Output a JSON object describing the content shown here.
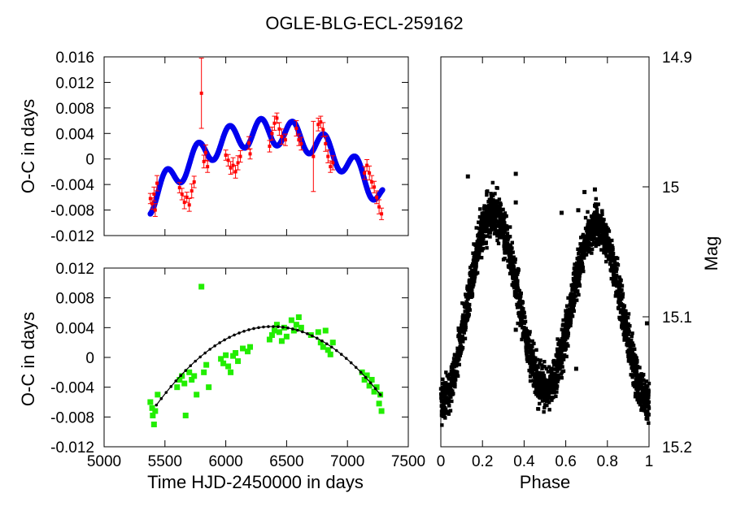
{
  "figure": {
    "title": "OGLE-BLG-ECL-259162"
  },
  "chart_data": [
    {
      "type": "scatter",
      "id": "oc-top",
      "title": "",
      "xlabel": "",
      "ylabel": "O-C in days",
      "xlim": [
        5000,
        7500
      ],
      "ylim": [
        -0.012,
        0.016
      ],
      "yticks": [
        "0.016",
        "0.012",
        "0.008",
        "0.004",
        "0",
        "-0.004",
        "-0.008",
        "-0.012"
      ],
      "ytick_values": [
        0.016,
        0.012,
        0.008,
        0.004,
        0,
        -0.004,
        -0.008,
        -0.012
      ],
      "xtick_values": [
        5000,
        5500,
        6000,
        6500,
        7000,
        7500
      ],
      "grid": false,
      "series": [
        {
          "name": "observed O-C with error bars",
          "kind": "errorbar",
          "color": "#ff0000",
          "points": [
            {
              "x": 5380,
              "y": -0.0062,
              "err": 0.0008
            },
            {
              "x": 5395,
              "y": -0.007,
              "err": 0.0009
            },
            {
              "x": 5410,
              "y": -0.0055,
              "err": 0.0011
            },
            {
              "x": 5420,
              "y": -0.008,
              "err": 0.001
            },
            {
              "x": 5435,
              "y": -0.0038,
              "err": 0.0012
            },
            {
              "x": 5620,
              "y": -0.0045,
              "err": 0.0008
            },
            {
              "x": 5640,
              "y": -0.0055,
              "err": 0.0009
            },
            {
              "x": 5660,
              "y": -0.0068,
              "err": 0.001
            },
            {
              "x": 5680,
              "y": -0.006,
              "err": 0.0008
            },
            {
              "x": 5700,
              "y": -0.0072,
              "err": 0.001
            },
            {
              "x": 5720,
              "y": -0.005,
              "err": 0.0011
            },
            {
              "x": 5740,
              "y": -0.0036,
              "err": 0.0009
            },
            {
              "x": 5800,
              "y": 0.0103,
              "err": 0.0055
            },
            {
              "x": 5820,
              "y": -0.0004,
              "err": 0.001
            },
            {
              "x": 5835,
              "y": 0.001,
              "err": 0.0012
            },
            {
              "x": 5850,
              "y": -0.0012,
              "err": 0.0009
            },
            {
              "x": 6000,
              "y": 0.0006,
              "err": 0.0008
            },
            {
              "x": 6020,
              "y": -0.0002,
              "err": 0.0009
            },
            {
              "x": 6040,
              "y": -0.0014,
              "err": 0.001
            },
            {
              "x": 6060,
              "y": -0.001,
              "err": 0.0012
            },
            {
              "x": 6080,
              "y": -0.002,
              "err": 0.001
            },
            {
              "x": 6100,
              "y": -0.0006,
              "err": 0.0011
            },
            {
              "x": 6120,
              "y": 0.0004,
              "err": 0.0009
            },
            {
              "x": 6190,
              "y": 0.0025,
              "err": 0.001
            },
            {
              "x": 6200,
              "y": 0.0008,
              "err": 0.0008
            },
            {
              "x": 6360,
              "y": 0.002,
              "err": 0.0009
            },
            {
              "x": 6380,
              "y": 0.004,
              "err": 0.001
            },
            {
              "x": 6400,
              "y": 0.0056,
              "err": 0.0011
            },
            {
              "x": 6420,
              "y": 0.0064,
              "err": 0.0008
            },
            {
              "x": 6440,
              "y": 0.0047,
              "err": 0.001
            },
            {
              "x": 6460,
              "y": 0.0035,
              "err": 0.0012
            },
            {
              "x": 6490,
              "y": 0.003,
              "err": 0.0009
            },
            {
              "x": 6580,
              "y": 0.0048,
              "err": 0.0012
            },
            {
              "x": 6600,
              "y": 0.003,
              "err": 0.0009
            },
            {
              "x": 6620,
              "y": 0.0024,
              "err": 0.001
            },
            {
              "x": 6720,
              "y": 0.0004,
              "err": 0.0055
            },
            {
              "x": 6760,
              "y": 0.0054,
              "err": 0.001
            },
            {
              "x": 6780,
              "y": 0.0058,
              "err": 0.0009
            },
            {
              "x": 6800,
              "y": 0.0046,
              "err": 0.0011
            },
            {
              "x": 6820,
              "y": 0.0024,
              "err": 0.0012
            },
            {
              "x": 6840,
              "y": 0.0004,
              "err": 0.001
            },
            {
              "x": 6860,
              "y": -0.0012,
              "err": 0.0009
            },
            {
              "x": 6880,
              "y": -0.0006,
              "err": 0.0011
            },
            {
              "x": 7140,
              "y": -0.0022,
              "err": 0.001
            },
            {
              "x": 7160,
              "y": -0.001,
              "err": 0.0009
            },
            {
              "x": 7180,
              "y": -0.0022,
              "err": 0.0011
            },
            {
              "x": 7200,
              "y": -0.0036,
              "err": 0.001
            },
            {
              "x": 7220,
              "y": -0.0044,
              "err": 0.0009
            },
            {
              "x": 7240,
              "y": -0.006,
              "err": 0.001
            },
            {
              "x": 7260,
              "y": -0.0075,
              "err": 0.0011
            },
            {
              "x": 7280,
              "y": -0.0086,
              "err": 0.0009
            }
          ]
        },
        {
          "name": "LTTE + oscillation model",
          "kind": "model",
          "color": "#0000ee",
          "x_range": [
            5380,
            7290
          ],
          "trend_anchor_x": [
            5380,
            6600,
            7290
          ],
          "trend_anchor_y": [
            -0.0065,
            0.0035,
            -0.006
          ],
          "oscillation_amplitude": 0.0021,
          "oscillation_period_days": 260,
          "oscillation_phase_x": 5380
        }
      ]
    },
    {
      "type": "scatter",
      "id": "oc-bottom",
      "title": "",
      "xlabel": "Time HJD-2450000 in days",
      "ylabel": "O-C in days",
      "xlim": [
        5000,
        7500
      ],
      "ylim": [
        -0.012,
        0.012
      ],
      "xticks": [
        "5000",
        "5500",
        "6000",
        "6500",
        "7000",
        "7500"
      ],
      "xtick_values": [
        5000,
        5500,
        6000,
        6500,
        7000,
        7500
      ],
      "yticks": [
        "0.012",
        "0.008",
        "0.004",
        "0",
        "-0.004",
        "-0.008",
        "-0.012"
      ],
      "ytick_values": [
        0.012,
        0.008,
        0.004,
        0,
        -0.004,
        -0.008,
        -0.012
      ],
      "grid": false,
      "series": [
        {
          "name": "residual O-C",
          "kind": "points",
          "color": "#22ee00",
          "points": [
            {
              "x": 5380,
              "y": -0.006
            },
            {
              "x": 5395,
              "y": -0.0068
            },
            {
              "x": 5400,
              "y": -0.0078
            },
            {
              "x": 5410,
              "y": -0.009
            },
            {
              "x": 5420,
              "y": -0.0072
            },
            {
              "x": 5440,
              "y": -0.005
            },
            {
              "x": 5600,
              "y": -0.004
            },
            {
              "x": 5620,
              "y": -0.003
            },
            {
              "x": 5640,
              "y": -0.0025
            },
            {
              "x": 5660,
              "y": -0.0035
            },
            {
              "x": 5670,
              "y": -0.0078
            },
            {
              "x": 5700,
              "y": -0.002
            },
            {
              "x": 5720,
              "y": -0.003
            },
            {
              "x": 5740,
              "y": -0.0025
            },
            {
              "x": 5760,
              "y": -0.005
            },
            {
              "x": 5800,
              "y": 0.0095
            },
            {
              "x": 5820,
              "y": -0.002
            },
            {
              "x": 5840,
              "y": -0.001
            },
            {
              "x": 5860,
              "y": -0.004
            },
            {
              "x": 5960,
              "y": -0.0002
            },
            {
              "x": 5980,
              "y": -0.0008
            },
            {
              "x": 6000,
              "y": 0.0003
            },
            {
              "x": 6020,
              "y": -0.0012
            },
            {
              "x": 6040,
              "y": -0.002
            },
            {
              "x": 6060,
              "y": 0.0002
            },
            {
              "x": 6080,
              "y": 0.0006
            },
            {
              "x": 6100,
              "y": -0.0005
            },
            {
              "x": 6140,
              "y": 0.0012
            },
            {
              "x": 6180,
              "y": 0.0008
            },
            {
              "x": 6200,
              "y": 0.0014
            },
            {
              "x": 6360,
              "y": 0.0024
            },
            {
              "x": 6380,
              "y": 0.003
            },
            {
              "x": 6400,
              "y": 0.0036
            },
            {
              "x": 6420,
              "y": 0.0044
            },
            {
              "x": 6440,
              "y": 0.0034
            },
            {
              "x": 6460,
              "y": 0.0022
            },
            {
              "x": 6480,
              "y": 0.004
            },
            {
              "x": 6500,
              "y": 0.0028
            },
            {
              "x": 6540,
              "y": 0.005
            },
            {
              "x": 6560,
              "y": 0.0036
            },
            {
              "x": 6580,
              "y": 0.0044
            },
            {
              "x": 6600,
              "y": 0.0054
            },
            {
              "x": 6620,
              "y": 0.004
            },
            {
              "x": 6700,
              "y": 0.003
            },
            {
              "x": 6760,
              "y": 0.0034
            },
            {
              "x": 6780,
              "y": 0.002
            },
            {
              "x": 6800,
              "y": 0.0014
            },
            {
              "x": 6820,
              "y": 0.0036
            },
            {
              "x": 6840,
              "y": 0.001
            },
            {
              "x": 6860,
              "y": 0.0004
            },
            {
              "x": 6880,
              "y": 0.002
            },
            {
              "x": 7120,
              "y": -0.002
            },
            {
              "x": 7140,
              "y": -0.003
            },
            {
              "x": 7160,
              "y": -0.0024
            },
            {
              "x": 7180,
              "y": -0.0038
            },
            {
              "x": 7200,
              "y": -0.003
            },
            {
              "x": 7220,
              "y": -0.0046
            },
            {
              "x": 7240,
              "y": -0.004
            },
            {
              "x": 7260,
              "y": -0.0062
            },
            {
              "x": 7270,
              "y": -0.005
            },
            {
              "x": 7280,
              "y": -0.0072
            }
          ]
        },
        {
          "name": "LTTE fit",
          "kind": "line",
          "color": "#000000",
          "x_range": [
            5430,
            7280
          ],
          "trend_anchor_x": [
            5430,
            6600,
            7280
          ],
          "trend_anchor_y": [
            -0.0064,
            0.0036,
            -0.0052
          ]
        }
      ]
    },
    {
      "type": "scatter",
      "id": "phase-curve",
      "title": "",
      "xlabel": "Phase",
      "ylabel": "Mag",
      "xlim": [
        0,
        1
      ],
      "ylim_top_to_bottom": [
        14.9,
        15.2
      ],
      "xticks": [
        "0",
        "0.2",
        "0.4",
        "0.6",
        "0.8",
        "1"
      ],
      "xtick_values": [
        0,
        0.2,
        0.4,
        0.6,
        0.8,
        1
      ],
      "yticks": [
        "14.9",
        "15",
        "15.1",
        "15.2"
      ],
      "ytick_values": [
        14.9,
        15.0,
        15.1,
        15.2
      ],
      "grid": false,
      "series": [
        {
          "name": "light curve",
          "kind": "phased-light-curve",
          "color": "#000000",
          "maximum_1": {
            "phase": 0.25,
            "mag": 15.02
          },
          "maximum_2": {
            "phase": 0.75,
            "mag": 15.03
          },
          "primary_minimum": {
            "phase": 0.0,
            "mag": 15.165
          },
          "secondary_minimum": {
            "phase": 0.5,
            "mag": 15.155
          },
          "scatter_mag": 0.016,
          "outliers": [
            {
              "x": 0.13,
              "y": 14.992
            },
            {
              "x": 0.36,
              "y": 14.99
            },
            {
              "x": 0.36,
              "y": 15.012
            },
            {
              "x": 0.69,
              "y": 15.004
            },
            {
              "x": 0.74,
              "y": 15.002
            },
            {
              "x": 0.58,
              "y": 15.02
            },
            {
              "x": 0.66,
              "y": 15.018
            },
            {
              "x": 0.36,
              "y": 15.11
            },
            {
              "x": 0.99,
              "y": 15.105
            },
            {
              "x": 0.65,
              "y": 15.14
            }
          ]
        }
      ]
    }
  ]
}
